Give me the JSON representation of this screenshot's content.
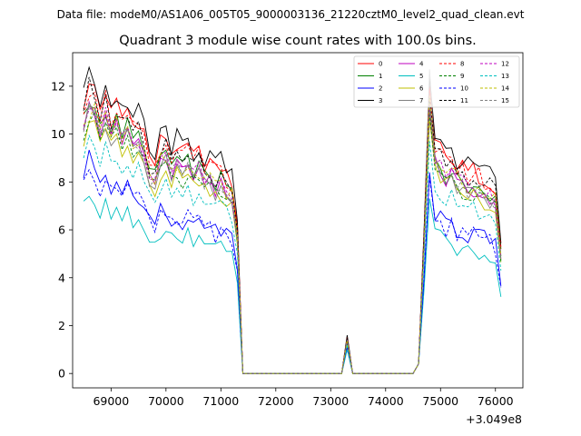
{
  "chart_data": {
    "type": "line",
    "suptitle": "Data file: modeM0/AS1A06_005T05_9000003136_21220cztM0_level2_quad_clean.evt",
    "title": "Quadrant 3 module wise count rates with 100.0s bins.",
    "xlabel": "",
    "ylabel": "",
    "x_offset_label": "+3.049e8",
    "xlim": [
      68300,
      76500
    ],
    "ylim": [
      -0.6,
      13.4
    ],
    "x_ticks": [
      69000,
      70000,
      71000,
      72000,
      73000,
      74000,
      75000,
      76000
    ],
    "x_tick_labels": [
      "69000",
      "70000",
      "71000",
      "72000",
      "73000",
      "74000",
      "75000",
      "76000"
    ],
    "y_ticks": [
      0,
      2,
      4,
      6,
      8,
      10,
      12
    ],
    "y_tick_labels": [
      "0",
      "2",
      "4",
      "6",
      "8",
      "10",
      "12"
    ],
    "grid": false,
    "legend": "top-right",
    "segments": [
      {
        "start": 68500,
        "step": 100,
        "count": 28
      },
      {
        "start": 71300,
        "step": 100,
        "count": 1
      },
      {
        "start": 71400,
        "step": 100,
        "count": 19
      },
      {
        "start": 73300,
        "step": 100,
        "count": 1
      },
      {
        "start": 73400,
        "step": 100,
        "count": 12
      },
      {
        "start": 74600,
        "step": 100,
        "count": 1
      },
      {
        "start": 74700,
        "step": 100,
        "count": 1
      },
      {
        "start": 74800,
        "step": 100,
        "count": 14
      }
    ],
    "series": [
      {
        "name": "0",
        "color": "#ff0000",
        "dash": "solid",
        "level_a": 11.3,
        "level_b": 10.6,
        "peak": 11.9,
        "peak_b": 12.0,
        "mid_spike": 1.5,
        "jitter": 0.4
      },
      {
        "name": "1",
        "color": "#008000",
        "dash": "solid",
        "level_a": 10.6,
        "level_b": 9.8,
        "peak": 11.2,
        "peak_b": 11.0,
        "mid_spike": 1.4,
        "jitter": 0.35
      },
      {
        "name": "2",
        "color": "#0000ff",
        "dash": "solid",
        "level_a": 7.9,
        "level_b": 7.3,
        "peak": 9.1,
        "peak_b": 8.4,
        "mid_spike": 1.1,
        "jitter": 0.4
      },
      {
        "name": "3",
        "color": "#000000",
        "dash": "solid",
        "level_a": 11.6,
        "level_b": 10.9,
        "peak": 12.7,
        "peak_b": 12.4,
        "mid_spike": 1.6,
        "jitter": 0.45
      },
      {
        "name": "4",
        "color": "#bf00bf",
        "dash": "solid",
        "level_a": 10.3,
        "level_b": 9.6,
        "peak": 11.4,
        "peak_b": 11.0,
        "mid_spike": 1.4,
        "jitter": 0.35
      },
      {
        "name": "5",
        "color": "#00bfbf",
        "dash": "solid",
        "level_a": 6.9,
        "level_b": 6.4,
        "peak": 7.6,
        "peak_b": 7.3,
        "mid_spike": 1.0,
        "jitter": 0.35
      },
      {
        "name": "6",
        "color": "#bfbf00",
        "dash": "solid",
        "level_a": 9.8,
        "level_b": 9.3,
        "peak": 10.2,
        "peak_b": 10.6,
        "mid_spike": 1.3,
        "jitter": 0.35
      },
      {
        "name": "7",
        "color": "#808080",
        "dash": "solid",
        "level_a": 10.1,
        "level_b": 9.5,
        "peak": 11.0,
        "peak_b": 12.7,
        "mid_spike": 1.4,
        "jitter": 0.35
      },
      {
        "name": "8",
        "color": "#ff0000",
        "dash": "dashed",
        "level_a": 11.2,
        "level_b": 10.5,
        "peak": 11.7,
        "peak_b": 11.9,
        "mid_spike": 1.5,
        "jitter": 0.45
      },
      {
        "name": "9",
        "color": "#008000",
        "dash": "dashed",
        "level_a": 10.0,
        "level_b": 9.4,
        "peak": 10.8,
        "peak_b": 10.9,
        "mid_spike": 1.3,
        "jitter": 0.35
      },
      {
        "name": "10",
        "color": "#0000ff",
        "dash": "dashed",
        "level_a": 7.8,
        "level_b": 7.2,
        "peak": 8.4,
        "peak_b": 8.2,
        "mid_spike": 1.1,
        "jitter": 0.4
      },
      {
        "name": "11",
        "color": "#000000",
        "dash": "dashed",
        "level_a": 10.9,
        "level_b": 10.4,
        "peak": 12.0,
        "peak_b": 11.5,
        "mid_spike": 1.5,
        "jitter": 0.4
      },
      {
        "name": "12",
        "color": "#bf00bf",
        "dash": "dashed",
        "level_a": 10.4,
        "level_b": 9.8,
        "peak": 11.2,
        "peak_b": 11.3,
        "mid_spike": 1.4,
        "jitter": 0.35
      },
      {
        "name": "13",
        "color": "#00bfbf",
        "dash": "dashed",
        "level_a": 9.1,
        "level_b": 8.6,
        "peak": 9.8,
        "peak_b": 9.7,
        "mid_spike": 1.2,
        "jitter": 0.35
      },
      {
        "name": "14",
        "color": "#bfbf00",
        "dash": "dashed",
        "level_a": 10.4,
        "level_b": 9.9,
        "peak": 10.9,
        "peak_b": 11.6,
        "mid_spike": 1.4,
        "jitter": 0.4
      },
      {
        "name": "15",
        "color": "#808080",
        "dash": "dashed",
        "level_a": 10.2,
        "level_b": 9.6,
        "peak": 10.9,
        "peak_b": 11.2,
        "mid_spike": 1.4,
        "jitter": 0.35
      }
    ]
  }
}
